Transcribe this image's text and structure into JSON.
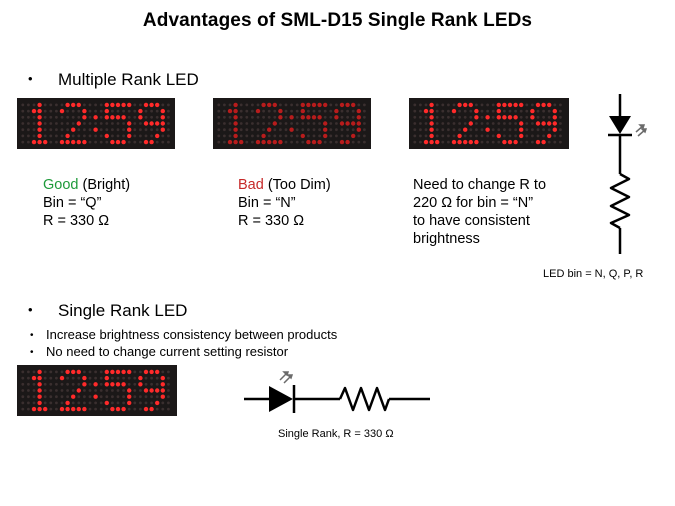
{
  "title": "Advantages of SML-D15 Single Rank LEDs",
  "section1": {
    "heading": "Multiple Rank LED",
    "display_text": "12:59",
    "items": [
      {
        "status": "Good",
        "status_color": "#1e9a3a",
        "status_note": " (Bright)",
        "line2": "Bin = “Q”",
        "line3": "R = 330 Ω"
      },
      {
        "status": "Bad",
        "status_color": "#c62828",
        "status_note": " (Too Dim)",
        "line2": "Bin = “N”",
        "line3": "R = 330 Ω"
      }
    ],
    "note": [
      "Need to change R to",
      "220 Ω for bin = “N”",
      "to have consistent",
      "brightness"
    ],
    "circuit_label": "LED bin = N, Q, P, R"
  },
  "section2": {
    "heading": "Single Rank LED",
    "points": [
      "Increase brightness consistency between products",
      "No need to change current setting resistor"
    ],
    "circuit_label": "Single Rank, R = 330 Ω"
  },
  "colors": {
    "led_bright": "#ff2a2a",
    "led_dim": "#b81c1c",
    "panel_bg": "#1b1818",
    "unlit": "#3a2f2f"
  },
  "icons": [
    "diode-icon",
    "resistor-icon",
    "emission-arrows-icon"
  ]
}
